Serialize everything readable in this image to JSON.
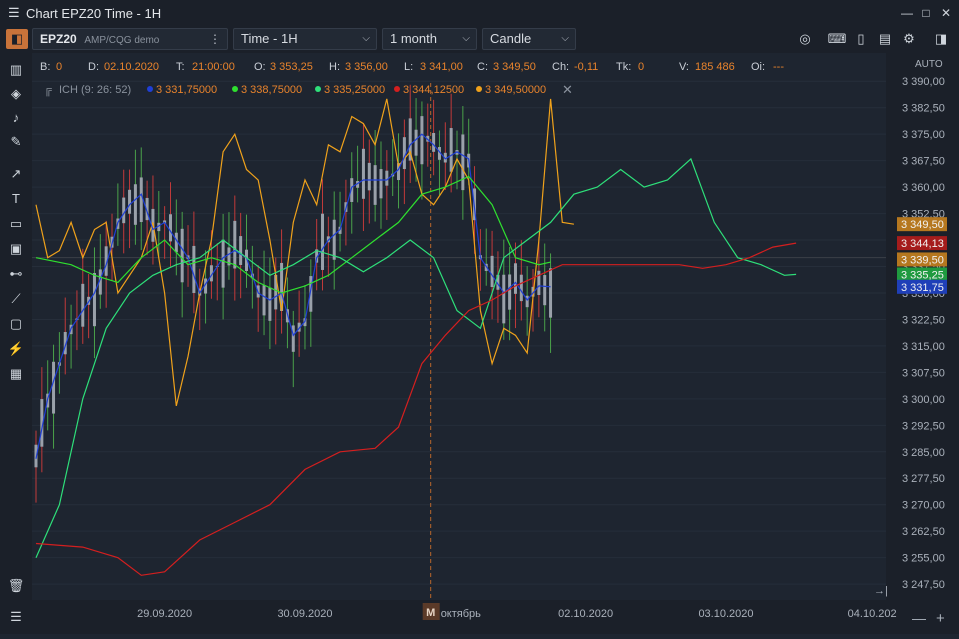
{
  "window": {
    "title": "Chart EPZ20 Time - 1H",
    "menu_icon": "hamburger-icon",
    "buttons": [
      "minimize-icon",
      "maximize-icon",
      "close-icon"
    ]
  },
  "toolbar": {
    "symbol": "EPZ20",
    "account": "AMP/CQG demo",
    "timeframe": "Time - 1H",
    "period": "1 month",
    "style": "Candle"
  },
  "info_bar": [
    {
      "label": "B:",
      "value": "0"
    },
    {
      "label": "D:",
      "value": "02.10.2020"
    },
    {
      "label": "T:",
      "value": "21:00:00"
    },
    {
      "label": "O:",
      "value": "3 353,25"
    },
    {
      "label": "H:",
      "value": "3 356,00"
    },
    {
      "label": "L:",
      "value": "3 341,00"
    },
    {
      "label": "C:",
      "value": "3 349,50"
    },
    {
      "label": "Ch:",
      "value": "-0,11"
    },
    {
      "label": "Tk:",
      "value": "0"
    },
    {
      "label": "V:",
      "value": "185 486"
    },
    {
      "label": "Oi:",
      "value": "---"
    }
  ],
  "indicator": {
    "name": "ICH (9: 26: 52)",
    "values": [
      {
        "value": "3 331,75000",
        "color": "#1f3fd6"
      },
      {
        "value": "3 338,75000",
        "color": "#2fe02f"
      },
      {
        "value": "3 335,25000",
        "color": "#2ee07a"
      },
      {
        "value": "3 344,12500",
        "color": "#d41f1f"
      },
      {
        "value": "3 349,50000",
        "color": "#f0a21b"
      }
    ]
  },
  "axis": {
    "auto_label": "AUTO",
    "marker_label": "M",
    "marker_text": "октябрь"
  },
  "chart_data": {
    "type": "line",
    "title": "",
    "ylim": [
      3243,
      3398
    ],
    "yticks": [
      3247.5,
      3255.0,
      3262.5,
      3270.0,
      3277.5,
      3285.0,
      3292.5,
      3300.0,
      3307.5,
      3315.0,
      3322.5,
      3330.0,
      3337.5,
      3345.0,
      3352.5,
      3360.0,
      3367.5,
      3375.0,
      3382.5,
      3390.0
    ],
    "ytick_labels": [
      "3 247,50",
      "3 255,00",
      "3 262,50",
      "3 270,00",
      "3 277,50",
      "3 285,00",
      "3 292,50",
      "3 300,00",
      "3 307,50",
      "3 315,00",
      "3 322,50",
      "3 330,00",
      "3 337,50",
      "3 345,00",
      "3 352,50",
      "3 360,00",
      "3 367,50",
      "3 375,00",
      "3 382,50",
      "3 390,00"
    ],
    "x_labels": [
      {
        "label": "29.09.2020",
        "i": 22
      },
      {
        "label": "30.09.2020",
        "i": 46
      },
      {
        "label": "02.10.2020",
        "i": 94
      },
      {
        "label": "03.10.2020",
        "i": 118
      },
      {
        "label": "04.10.202",
        "i": 143
      }
    ],
    "session_break_i": 67.5,
    "x_count": 145,
    "price_labels": [
      {
        "value": "3 349,50",
        "y": 3349.5,
        "color": "#b5771f"
      },
      {
        "value": "3 344,13",
        "y": 3344.13,
        "color": "#a51c1c"
      },
      {
        "value": "3 339,50",
        "y": 3339.5,
        "color": "#b5771f"
      },
      {
        "value": "3 335,25",
        "y": 3335.25,
        "color": "#1f9a3f"
      },
      {
        "value": "3 331,75",
        "y": 3331.75,
        "color": "#1f3fb8"
      }
    ],
    "series": [
      {
        "color": "#f0a21b",
        "values": [
          [
            0,
            3355
          ],
          [
            2,
            3340
          ],
          [
            4,
            3342
          ],
          [
            6,
            3350
          ],
          [
            8,
            3340
          ],
          [
            10,
            3348
          ],
          [
            12,
            3350
          ],
          [
            14,
            3330
          ],
          [
            16,
            3335
          ],
          [
            18,
            3340
          ],
          [
            20,
            3350
          ],
          [
            22,
            3330
          ],
          [
            24,
            3298
          ],
          [
            26,
            3312
          ],
          [
            28,
            3330
          ],
          [
            30,
            3345
          ],
          [
            32,
            3370
          ],
          [
            34,
            3375
          ],
          [
            36,
            3365
          ],
          [
            38,
            3362
          ],
          [
            40,
            3345
          ],
          [
            42,
            3325
          ],
          [
            44,
            3350
          ],
          [
            46,
            3362
          ],
          [
            48,
            3355
          ],
          [
            50,
            3372
          ],
          [
            52,
            3370
          ],
          [
            54,
            3380
          ],
          [
            56,
            3378
          ],
          [
            58,
            3372
          ],
          [
            60,
            3385
          ],
          [
            62,
            3366
          ],
          [
            64,
            3370
          ],
          [
            66,
            3358
          ],
          [
            68,
            3355
          ],
          [
            70,
            3360
          ],
          [
            72,
            3368
          ],
          [
            74,
            3362
          ],
          [
            76,
            3325
          ],
          [
            78,
            3310
          ],
          [
            80,
            3320
          ],
          [
            82,
            3318
          ],
          [
            84,
            3313
          ],
          [
            86,
            3345
          ],
          [
            88,
            3385
          ],
          [
            90,
            3350
          ],
          [
            92,
            3349.5
          ]
        ]
      },
      {
        "color": "#1f3fd6",
        "values": [
          [
            0,
            3283
          ],
          [
            2,
            3300
          ],
          [
            4,
            3310
          ],
          [
            6,
            3320
          ],
          [
            8,
            3325
          ],
          [
            10,
            3330
          ],
          [
            12,
            3338
          ],
          [
            14,
            3350
          ],
          [
            16,
            3355
          ],
          [
            18,
            3358
          ],
          [
            20,
            3348
          ],
          [
            22,
            3350
          ],
          [
            24,
            3345
          ],
          [
            26,
            3340
          ],
          [
            28,
            3330
          ],
          [
            30,
            3335
          ],
          [
            32,
            3340
          ],
          [
            34,
            3342
          ],
          [
            36,
            3340
          ],
          [
            38,
            3330
          ],
          [
            40,
            3328
          ],
          [
            42,
            3330
          ],
          [
            44,
            3318
          ],
          [
            46,
            3322
          ],
          [
            48,
            3340
          ],
          [
            50,
            3345
          ],
          [
            52,
            3348
          ],
          [
            54,
            3360
          ],
          [
            56,
            3362
          ],
          [
            58,
            3362
          ],
          [
            60,
            3362
          ],
          [
            62,
            3365
          ],
          [
            64,
            3372
          ],
          [
            66,
            3375
          ],
          [
            68,
            3372
          ],
          [
            70,
            3368
          ],
          [
            72,
            3370
          ],
          [
            74,
            3368
          ],
          [
            76,
            3340
          ],
          [
            78,
            3335
          ],
          [
            80,
            3330
          ],
          [
            82,
            3333
          ],
          [
            84,
            3328
          ],
          [
            86,
            3332
          ],
          [
            88,
            3331.75
          ]
        ]
      },
      {
        "color": "#2fe02f",
        "values": [
          [
            0,
            3340
          ],
          [
            6,
            3338
          ],
          [
            10,
            3335
          ],
          [
            14,
            3333
          ],
          [
            18,
            3340
          ],
          [
            22,
            3345
          ],
          [
            26,
            3338
          ],
          [
            30,
            3340
          ],
          [
            34,
            3338
          ],
          [
            38,
            3333
          ],
          [
            42,
            3330
          ],
          [
            46,
            3332
          ],
          [
            50,
            3335
          ],
          [
            54,
            3340
          ],
          [
            58,
            3345
          ],
          [
            62,
            3350
          ],
          [
            66,
            3358
          ],
          [
            70,
            3360
          ],
          [
            74,
            3363
          ],
          [
            78,
            3355
          ],
          [
            82,
            3340
          ],
          [
            86,
            3338
          ],
          [
            88,
            3338.75
          ]
        ]
      },
      {
        "color": "#2ee07a",
        "values": [
          [
            0,
            3255
          ],
          [
            4,
            3270
          ],
          [
            8,
            3300
          ],
          [
            12,
            3320
          ],
          [
            16,
            3330
          ],
          [
            20,
            3335
          ],
          [
            24,
            3338
          ],
          [
            28,
            3340
          ],
          [
            32,
            3345
          ],
          [
            36,
            3340
          ],
          [
            40,
            3335
          ],
          [
            44,
            3338
          ],
          [
            48,
            3342
          ],
          [
            52,
            3340
          ],
          [
            56,
            3336
          ],
          [
            60,
            3340
          ],
          [
            64,
            3345
          ],
          [
            68,
            3340
          ],
          [
            72,
            3325
          ],
          [
            76,
            3320
          ],
          [
            80,
            3340
          ],
          [
            84,
            3345
          ],
          [
            88,
            3350
          ],
          [
            92,
            3358
          ],
          [
            96,
            3360
          ],
          [
            100,
            3365
          ],
          [
            104,
            3360
          ],
          [
            108,
            3362
          ],
          [
            112,
            3368
          ],
          [
            116,
            3350
          ],
          [
            120,
            3340
          ],
          [
            124,
            3338
          ],
          [
            128,
            3335
          ],
          [
            130,
            3335.25
          ]
        ]
      },
      {
        "color": "#d41f1f",
        "values": [
          [
            0,
            3259
          ],
          [
            8,
            3258
          ],
          [
            14,
            3255
          ],
          [
            18,
            3250
          ],
          [
            22,
            3251
          ],
          [
            28,
            3260
          ],
          [
            34,
            3265
          ],
          [
            40,
            3270
          ],
          [
            46,
            3280
          ],
          [
            52,
            3285
          ],
          [
            58,
            3286
          ],
          [
            62,
            3292
          ],
          [
            66,
            3310
          ],
          [
            70,
            3318
          ],
          [
            74,
            3325
          ],
          [
            78,
            3328
          ],
          [
            82,
            3332
          ],
          [
            86,
            3335
          ],
          [
            90,
            3338
          ],
          [
            94,
            3338
          ],
          [
            98,
            3338
          ],
          [
            102,
            3338
          ],
          [
            106,
            3338
          ],
          [
            110,
            3338
          ],
          [
            114,
            3337
          ],
          [
            118,
            3338
          ],
          [
            122,
            3340
          ],
          [
            126,
            3343
          ],
          [
            130,
            3344.13
          ]
        ]
      }
    ]
  }
}
